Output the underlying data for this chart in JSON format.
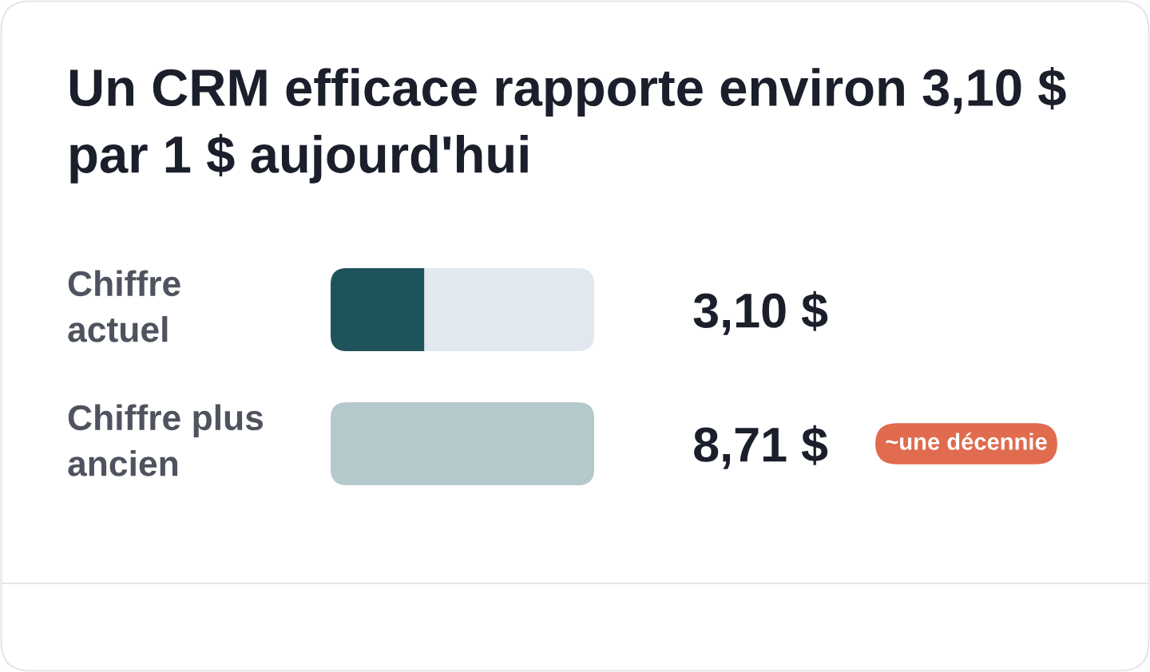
{
  "chart_data": {
    "type": "bar",
    "orientation": "horizontal",
    "stacked": true,
    "title": "Un CRM efficace rapporte environ 3,10 $ par 1 $ aujourd'hui",
    "categories": [
      "Chiffre actuel",
      "Chiffre plus ancien"
    ],
    "series": [
      {
        "colors": [
          "#1f535c",
          "#b5c9cc"
        ],
        "values": [
          3.1,
          8.71
        ],
        "value_labels": [
          "3,10 $",
          "8,71 $"
        ]
      },
      {
        "color": "#e2e8f0",
        "values": [
          5.61,
          null
        ]
      }
    ],
    "annotations": [
      "~une décennie"
    ]
  }
}
